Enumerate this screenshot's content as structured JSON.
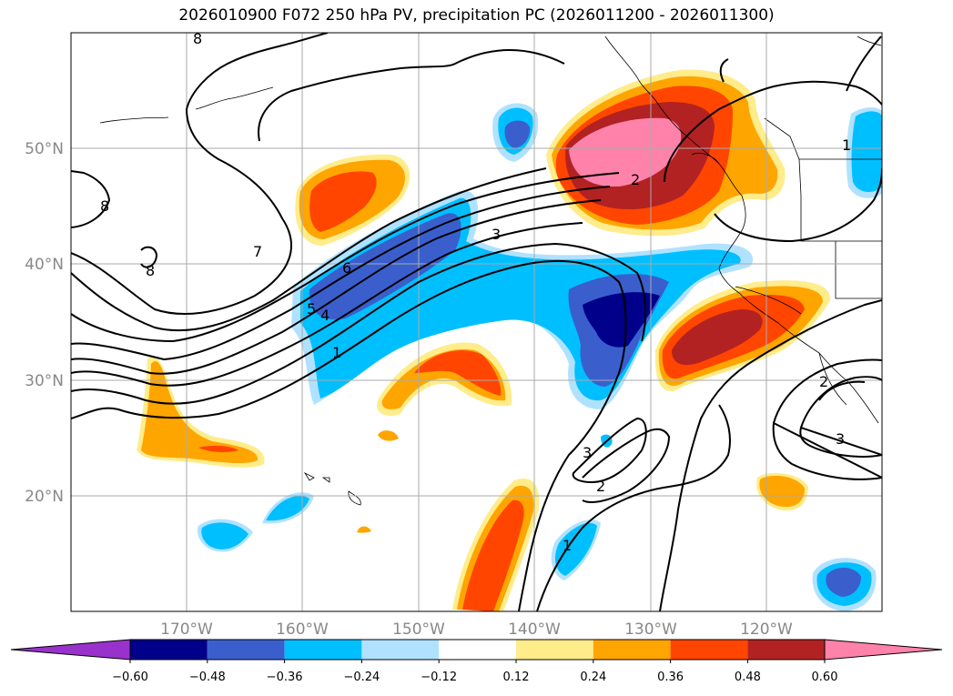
{
  "title": "2026010900 F072 250 hPa PV, precipitation PC (2026011200 - 2026011300)",
  "map": {
    "lat_labels": [
      "50°N",
      "40°N",
      "30°N",
      "20°N"
    ],
    "lon_labels": [
      "170°W",
      "160°W",
      "150°W",
      "140°W",
      "130°W",
      "120°W"
    ],
    "contour_labels": [
      "8",
      "8",
      "8",
      "7",
      "6",
      "5",
      "4",
      "3",
      "2",
      "2",
      "1",
      "1",
      "1",
      "3",
      "2",
      "3"
    ]
  },
  "colorbar": {
    "tick_labels": [
      "−0.60",
      "−0.48",
      "−0.36",
      "−0.24",
      "−0.12",
      "0.12",
      "0.24",
      "0.36",
      "0.48",
      "0.60"
    ],
    "colors": {
      "lt_neg_060": "#9932cc",
      "neg_060": "#00008b",
      "neg_048": "#3a5fcd",
      "neg_036": "#00bfff",
      "neg_024": "#b0e2ff",
      "neutral": "#ffffff",
      "pos_012": "#ffec8b",
      "pos_024": "#ffa500",
      "pos_036": "#ff4500",
      "pos_048": "#b22222",
      "gt_060": "#ff82ab"
    }
  }
}
